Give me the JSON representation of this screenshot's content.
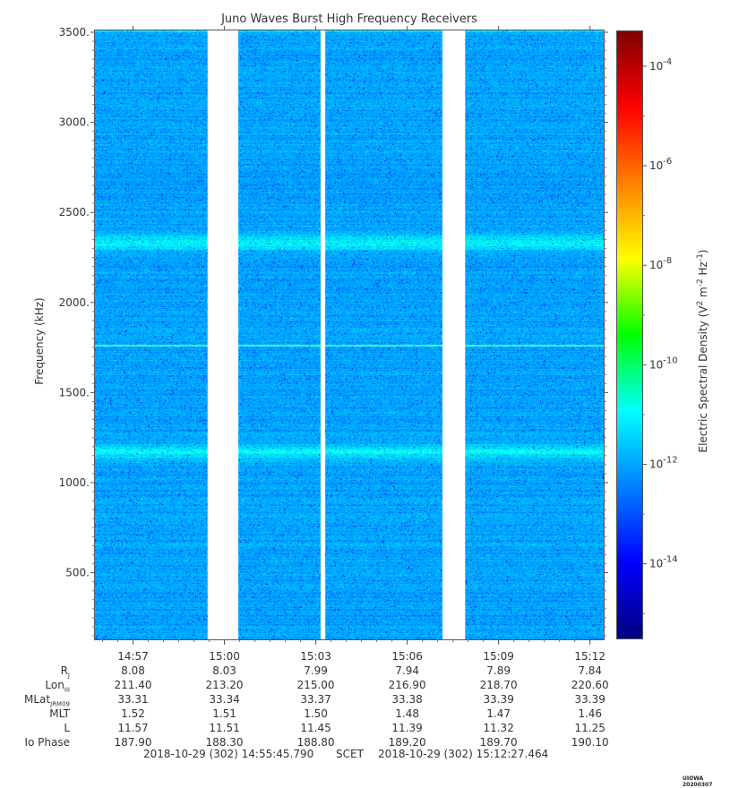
{
  "chart_data": {
    "type": "heatmap",
    "title": "Juno Waves Burst High Frequency Receivers",
    "ylabel": "Frequency (kHz)",
    "colorbar_label_main": "Electric Spectral Density (V",
    "colorbar_label_sup1": "2",
    "colorbar_label_mid": " m",
    "colorbar_label_sup2": "-2",
    "colorbar_label_hz": " Hz",
    "colorbar_label_sup3": "-1",
    "colorbar_label_end": ")",
    "ylim": [
      130,
      3510
    ],
    "y_ticks": [
      500,
      1000,
      1500,
      2000,
      2500,
      3000,
      3500
    ],
    "y_tick_labels": [
      "500.",
      "1000.",
      "1500.",
      "2000.",
      "2500.",
      "3000.",
      "3500."
    ],
    "x_range_seconds": [
      0,
      1002
    ],
    "x_ticks_seconds": [
      75,
      255,
      435,
      615,
      795,
      975
    ],
    "x_tick_labels": [
      "14:57",
      "15:00",
      "15:03",
      "15:06",
      "15:09",
      "15:12"
    ],
    "colorbar_log_range": [
      -15.5,
      -3.3
    ],
    "colorbar_tick_exponents": [
      -4,
      -6,
      -8,
      -10,
      -12,
      -14
    ],
    "colorbar_tick_base": "10",
    "background_level_exp": -12,
    "data_gaps_seconds": [
      [
        222,
        282
      ],
      [
        445,
        453
      ],
      [
        685,
        729
      ]
    ],
    "spectral_features": [
      {
        "frequency_khz": 1760,
        "type": "narrowband line",
        "level_exp": -10
      },
      {
        "frequency_khz": 2330,
        "type": "enhanced band",
        "level_exp": -11
      },
      {
        "frequency_khz": 1170,
        "type": "enhanced band",
        "level_exp": -11
      }
    ]
  },
  "ephemeris": {
    "labels": [
      {
        "main": "R",
        "sub": "J"
      },
      {
        "main": "Lon",
        "sub": "III"
      },
      {
        "main": "MLat",
        "sub": "JRM09"
      },
      {
        "main": "MLT",
        "sub": ""
      },
      {
        "main": "L",
        "sub": ""
      },
      {
        "main": "Io Phase",
        "sub": ""
      }
    ],
    "rows": [
      [
        "8.08",
        "8.03",
        "7.99",
        "7.94",
        "7.89",
        "7.84"
      ],
      [
        "211.40",
        "213.20",
        "215.00",
        "216.90",
        "218.70",
        "220.60"
      ],
      [
        "33.31",
        "33.34",
        "33.37",
        "33.38",
        "33.39",
        "33.39"
      ],
      [
        "1.52",
        "1.51",
        "1.50",
        "1.48",
        "1.47",
        "1.46"
      ],
      [
        "11.57",
        "11.51",
        "11.45",
        "11.39",
        "11.32",
        "11.25"
      ],
      [
        "187.90",
        "188.30",
        "188.80",
        "189.20",
        "189.70",
        "190.10"
      ]
    ]
  },
  "footer": {
    "start": "2018-10-29 (302) 14:55:45.790",
    "scet": "SCET",
    "end": "2018-10-29 (302) 15:12:27.464"
  },
  "stamp": "UIOWA 20200307"
}
